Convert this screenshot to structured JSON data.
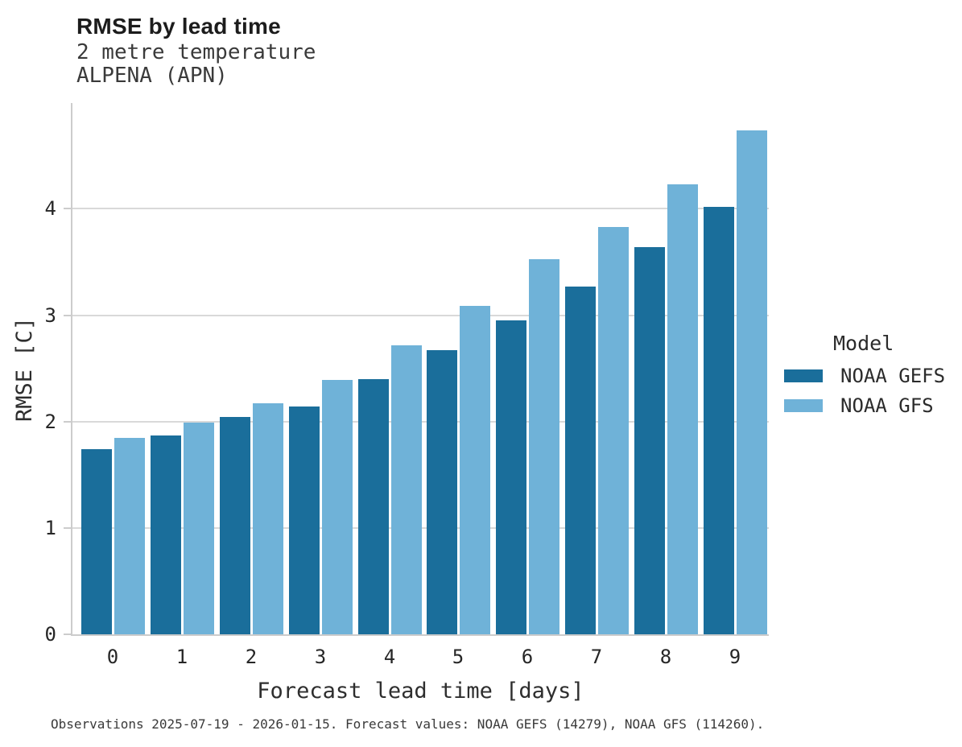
{
  "header": {
    "title": "RMSE by lead time",
    "subtitle": "2 metre temperature",
    "station": "ALPENA (APN)"
  },
  "chart_data": {
    "type": "bar",
    "categories": [
      "0",
      "1",
      "2",
      "3",
      "4",
      "5",
      "6",
      "7",
      "8",
      "9"
    ],
    "series": [
      {
        "name": "NOAA GEFS",
        "color": "#1a6e9b",
        "values": [
          1.74,
          1.87,
          2.04,
          2.14,
          2.4,
          2.67,
          2.95,
          3.27,
          3.64,
          4.02
        ]
      },
      {
        "name": "NOAA GFS",
        "color": "#6fb2d8",
        "values": [
          1.85,
          1.99,
          2.17,
          2.39,
          2.72,
          3.09,
          3.53,
          3.83,
          4.23,
          4.74
        ]
      }
    ],
    "title": "RMSE by lead time",
    "xlabel": "Forecast lead time [days]",
    "ylabel": "RMSE [C]",
    "ylim": [
      0,
      5.01
    ],
    "yticks": [
      0,
      1,
      2,
      3,
      4
    ],
    "grid": "horizontal-only",
    "legend_title": "Model",
    "legend_position": "right-outside"
  },
  "colors": {
    "gefs_bar": "#1a6e9b",
    "gfs_bar": "#6fb2d8",
    "gridline": "#d9d9d9",
    "axis_spine": "#cccccc"
  },
  "caption": "Observations 2025-07-19 - 2026-01-15. Forecast values: NOAA GEFS (14279), NOAA GFS (114260)."
}
